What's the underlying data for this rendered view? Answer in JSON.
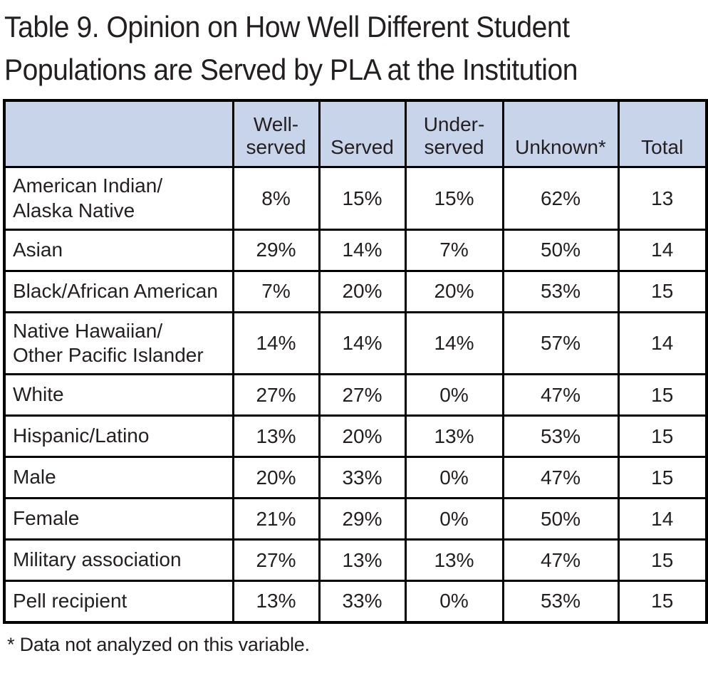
{
  "page": {
    "title": "Table 9. Opinion on How Well Different Student\nPopulations are Served by PLA at the Institution",
    "footnote": "* Data not analyzed on this variable."
  },
  "colors": {
    "header_bg": "#c8d4ea",
    "border": "#000000",
    "text": "#231f20"
  },
  "table": {
    "columns": [
      "",
      "Well-\nserved",
      "Served",
      "Under-\nserved",
      "Unknown*",
      "Total"
    ],
    "rows": [
      {
        "label": "American Indian/\nAlaska Native",
        "values": [
          "8%",
          "15%",
          "15%",
          "62%",
          "13"
        ]
      },
      {
        "label": "Asian",
        "values": [
          "29%",
          "14%",
          "7%",
          "50%",
          "14"
        ]
      },
      {
        "label": "Black/African American",
        "values": [
          "7%",
          "20%",
          "20%",
          "53%",
          "15"
        ]
      },
      {
        "label": "Native Hawaiian/\nOther Pacific Islander",
        "values": [
          "14%",
          "14%",
          "14%",
          "57%",
          "14"
        ]
      },
      {
        "label": "White",
        "values": [
          "27%",
          "27%",
          "0%",
          "47%",
          "15"
        ]
      },
      {
        "label": "Hispanic/Latino",
        "values": [
          "13%",
          "20%",
          "13%",
          "53%",
          "15"
        ]
      },
      {
        "label": "Male",
        "values": [
          "20%",
          "33%",
          "0%",
          "47%",
          "15"
        ]
      },
      {
        "label": "Female",
        "values": [
          "21%",
          "29%",
          "0%",
          "50%",
          "14"
        ]
      },
      {
        "label": "Military association",
        "values": [
          "27%",
          "13%",
          "13%",
          "47%",
          "15"
        ]
      },
      {
        "label": "Pell recipient",
        "values": [
          "13%",
          "33%",
          "0%",
          "53%",
          "15"
        ]
      }
    ]
  },
  "chart_data": {
    "type": "table",
    "title": "Table 9. Opinion on How Well Different Student Populations are Served by PLA at the Institution",
    "columns": [
      "Well-served",
      "Served",
      "Under-served",
      "Unknown*",
      "Total"
    ],
    "rows": [
      {
        "population": "American Indian/Alaska Native",
        "well_served": "8%",
        "served": "15%",
        "under_served": "15%",
        "unknown": "62%",
        "total": 13
      },
      {
        "population": "Asian",
        "well_served": "29%",
        "served": "14%",
        "under_served": "7%",
        "unknown": "50%",
        "total": 14
      },
      {
        "population": "Black/African American",
        "well_served": "7%",
        "served": "20%",
        "under_served": "20%",
        "unknown": "53%",
        "total": 15
      },
      {
        "population": "Native Hawaiian/Other Pacific Islander",
        "well_served": "14%",
        "served": "14%",
        "under_served": "14%",
        "unknown": "57%",
        "total": 14
      },
      {
        "population": "White",
        "well_served": "27%",
        "served": "27%",
        "under_served": "0%",
        "unknown": "47%",
        "total": 15
      },
      {
        "population": "Hispanic/Latino",
        "well_served": "13%",
        "served": "20%",
        "under_served": "13%",
        "unknown": "53%",
        "total": 15
      },
      {
        "population": "Male",
        "well_served": "20%",
        "served": "33%",
        "under_served": "0%",
        "unknown": "47%",
        "total": 15
      },
      {
        "population": "Female",
        "well_served": "21%",
        "served": "29%",
        "under_served": "0%",
        "unknown": "50%",
        "total": 14
      },
      {
        "population": "Military association",
        "well_served": "27%",
        "served": "13%",
        "under_served": "13%",
        "unknown": "47%",
        "total": 15
      },
      {
        "population": "Pell recipient",
        "well_served": "13%",
        "served": "33%",
        "under_served": "0%",
        "unknown": "53%",
        "total": 15
      }
    ],
    "footnote": "* Data not analyzed on this variable."
  }
}
